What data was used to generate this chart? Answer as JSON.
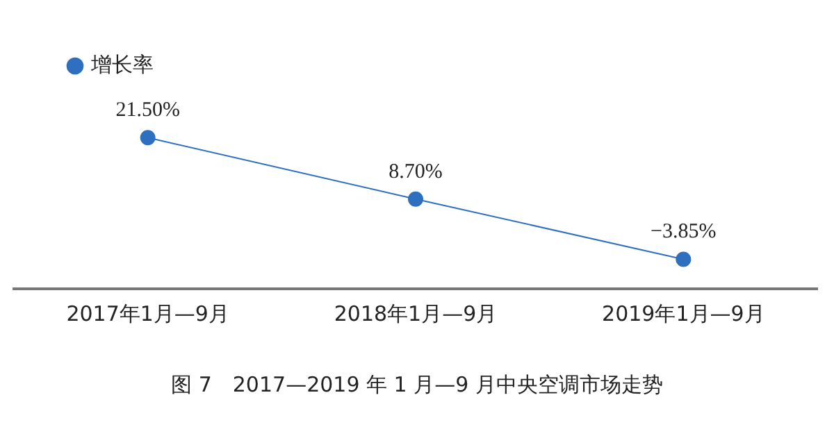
{
  "chart_data": {
    "type": "line",
    "categories": [
      "2017年1月—9月",
      "2018年1月—9月",
      "2019年1月—9月"
    ],
    "series": [
      {
        "name": "增长率",
        "color": "#2e6fc0",
        "values": [
          21.5,
          8.7,
          -3.85
        ],
        "value_labels": [
          "21.50%",
          "8.70%",
          "−3.85%"
        ]
      }
    ],
    "marker": "circle",
    "legend": "top left",
    "tick_labels": "x",
    "annotations": [
      "图 7　2017—2019 年 1 月—9 月中央空调市场走势"
    ]
  }
}
